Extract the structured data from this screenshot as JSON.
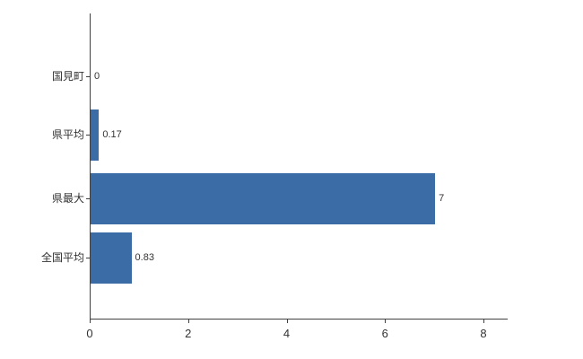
{
  "chart_data": {
    "type": "bar",
    "orientation": "horizontal",
    "title": "",
    "xlabel": "",
    "ylabel": "",
    "categories": [
      "国見町",
      "県平均",
      "県最大",
      "全国平均"
    ],
    "values": [
      0,
      0.17,
      7,
      0.83
    ],
    "value_labels": [
      "0",
      "0.17",
      "7",
      "0.83"
    ],
    "xlim": [
      0,
      8.5
    ],
    "x_ticks": [
      0,
      2,
      4,
      6,
      8
    ],
    "x_tick_labels": [
      "0",
      "2",
      "4",
      "6",
      "8"
    ],
    "grid": false,
    "legend": false,
    "bar_color": "#3c6ca6",
    "axis_color": "#404040",
    "text_color": "#333333",
    "background_color": "#ffffff"
  }
}
